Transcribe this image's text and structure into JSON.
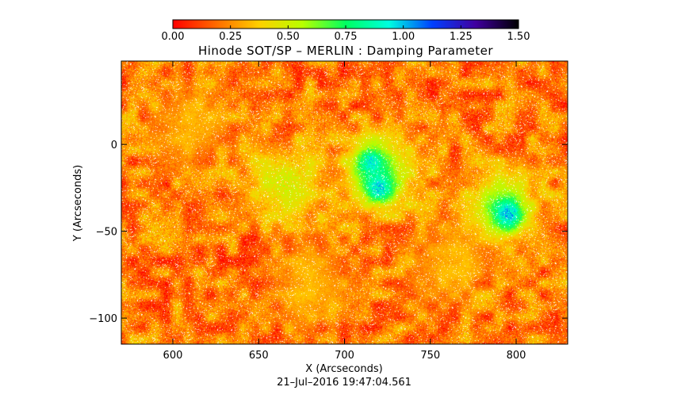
{
  "chart_data": {
    "type": "heatmap",
    "title": "Hinode SOT/SP – MERLIN : Damping Parameter",
    "xlabel": "X (Arcseconds)",
    "ylabel": "Y (Arcseconds)",
    "timestamp": "21–Jul–2016 19:47:04.561",
    "xlim": [
      570,
      830
    ],
    "ylim": [
      -115,
      48
    ],
    "x_ticks": [
      600,
      650,
      700,
      750,
      800
    ],
    "x_tick_labels": [
      "600",
      "650",
      "700",
      "750",
      "800"
    ],
    "y_ticks": [
      0,
      -50,
      -100
    ],
    "y_tick_labels": [
      "0",
      "−50",
      "−100"
    ],
    "colorbar": {
      "min": 0.0,
      "max": 1.5,
      "ticks": [
        0.0,
        0.25,
        0.5,
        0.75,
        1.0,
        1.25,
        1.5
      ],
      "tick_labels": [
        "0.00",
        "0.25",
        "0.50",
        "0.75",
        "1.00",
        "1.25",
        "1.50"
      ],
      "stops": [
        "#ff0000",
        "#ff6a00",
        "#ffd000",
        "#b8ff00",
        "#00ff60",
        "#00ffe0",
        "#0040ff",
        "#4000a0",
        "#000000"
      ]
    },
    "features": [
      {
        "x": 665,
        "y": -22,
        "value": 0.55
      },
      {
        "x": 722,
        "y": -15,
        "value": 0.6
      },
      {
        "x": 715,
        "y": -10,
        "value": 1.0
      },
      {
        "x": 720,
        "y": -25,
        "value": 1.05
      },
      {
        "x": 790,
        "y": -35,
        "value": 0.6
      },
      {
        "x": 795,
        "y": -40,
        "value": 1.1
      },
      {
        "x": 610,
        "y": 10,
        "value": 0.35
      },
      {
        "x": 760,
        "y": -70,
        "value": 0.35
      },
      {
        "x": 680,
        "y": -80,
        "value": 0.35
      }
    ]
  }
}
